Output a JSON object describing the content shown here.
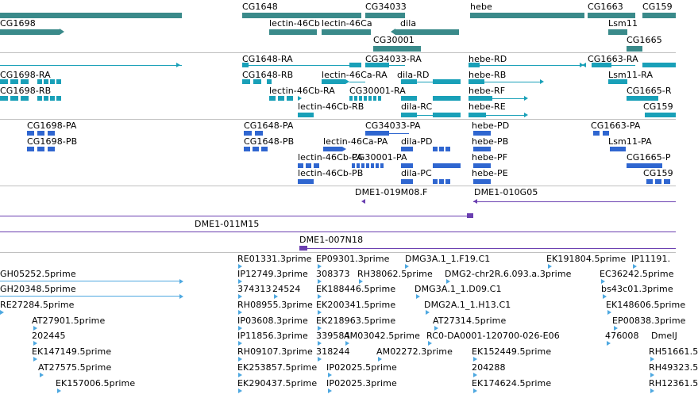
{
  "colors": {
    "gene": "#3a8a8a",
    "transcript": "#19a0b8",
    "cds": "#2f66d0",
    "clone": "#6a3fb0",
    "est": "#4ea8e0",
    "separator": "#c0c0c0"
  },
  "tracks": {
    "genes": {
      "labels": [
        "CG1648",
        "CG34033",
        "hebe",
        "CG1663",
        "CG159",
        "CG1698",
        "lectin-46Cb",
        "lectin-46Ca",
        "dila",
        "Lsm11",
        "CG30001",
        "CG1665"
      ]
    },
    "transcripts": {
      "labels": [
        "CG1648-RA",
        "CG34033-RA",
        "hebe-RD",
        "CG1663-RA",
        "CG1698-RA",
        "CG1648-RB",
        "lectin-46Ca-RA",
        "dila-RD",
        "hebe-RB",
        "Lsm11-RA",
        "CG1698-RB",
        "lectin-46Cb-RA",
        "CG30001-RA",
        "hebe-RF",
        "CG1665-R",
        "lectin-46Cb-RB",
        "dila-RC",
        "hebe-RE",
        "CG159"
      ]
    },
    "proteins": {
      "labels": [
        "CG1698-PA",
        "CG1648-PA",
        "CG34033-PA",
        "hebe-PD",
        "CG1663-PA",
        "CG1698-PB",
        "CG1648-PB",
        "lectin-46Ca-PA",
        "dila-PD",
        "hebe-PB",
        "Lsm11-PA",
        "lectin-46Cb-PA",
        "CG30001-PA",
        "hebe-PF",
        "CG1665-P",
        "lectin-46Cb-PB",
        "dila-PC",
        "hebe-PE",
        "CG159"
      ]
    },
    "clones": {
      "labels": [
        "DME1-019M08.F",
        "DME1-010G05",
        "DME1-011M15",
        "DME1-007N18"
      ]
    },
    "ests": {
      "labels": [
        "RE01331.3prime",
        "EP09301.3prime",
        "DMG3A.1_1.F19.C1",
        "EK191804.5prime",
        "IP11191.",
        "GH05252.5prime",
        "IP12749.3prime",
        "308373",
        "RH38062.5prime",
        "DMG2-chr2R.6.093.a.3prime",
        "EC36242.5prime",
        "GH20348.5prime",
        "374313",
        "24524",
        "EK188446.5prime",
        "DMG3A.1_1.D09.C1",
        "bs43c01.3prime",
        "RE27284.5prime",
        "RH08955.3prime",
        "EK200341.5prime",
        "DMG2A.1_1.H13.C1",
        "EK148606.5prime",
        "AT27901.5prime",
        "IP03608.3prime",
        "EK218963.5prime",
        "AT27314.5prime",
        "EP00838.3prime",
        "202445",
        "IP11856.3prime",
        "339584",
        "AM03042.5prime",
        "RC0-DA0001-120700-026-E06",
        "476008",
        "DmeIJ",
        "EK147149.5prime",
        "RH09107.3prime",
        "318244",
        "AM02272.3prime",
        "EK152449.5prime",
        "RH51661.5",
        "AT27575.5prime",
        "EK253857.5prime",
        "IP02025.5prime",
        "204288",
        "RH49323.5",
        "EK157006.5prime",
        "EK290437.5prime",
        "IP02025.3prime",
        "EK174624.5prime",
        "RH12361.5"
      ]
    }
  }
}
